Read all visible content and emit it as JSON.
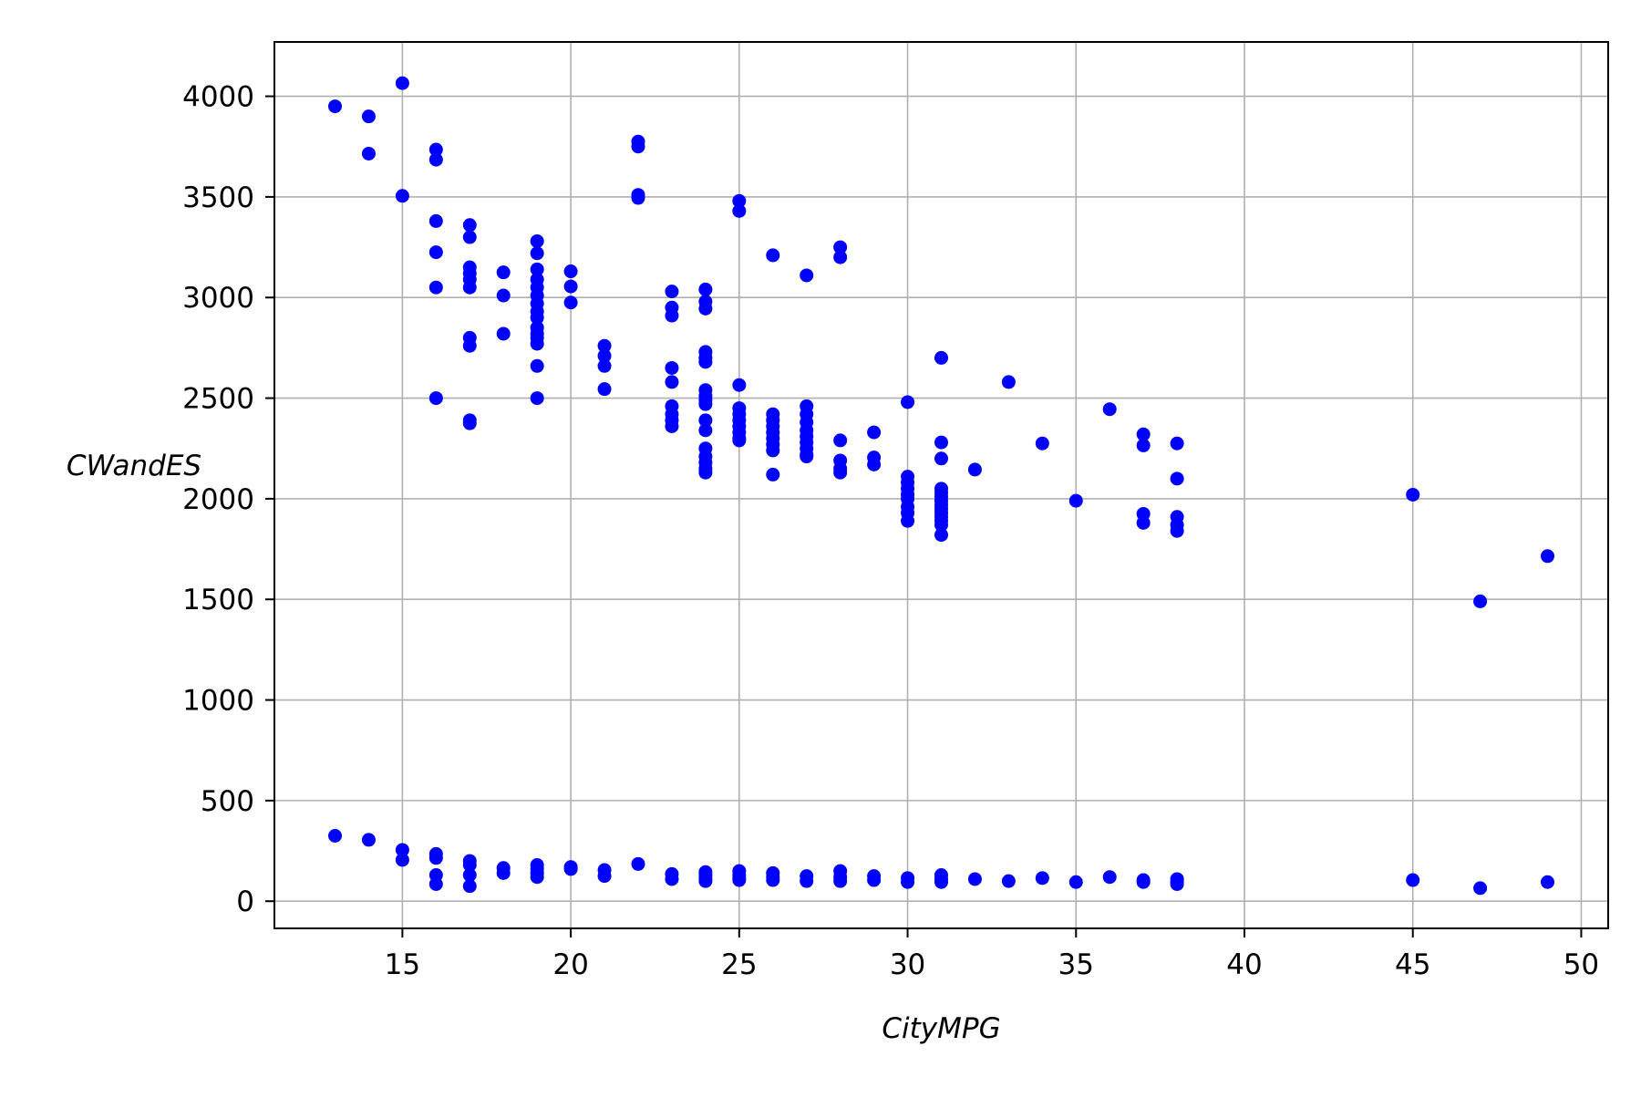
{
  "colors": {
    "marker": "#0000ff",
    "grid": "#b0b0b0",
    "axis": "#000000",
    "background": "#ffffff"
  },
  "chart_data": {
    "type": "scatter",
    "title": "",
    "xlabel": "CityMPG",
    "ylabel": "CWandES",
    "xlim": [
      11.2,
      50.8
    ],
    "ylim": [
      -135,
      4270
    ],
    "x_ticks": [
      15,
      20,
      25,
      30,
      35,
      40,
      45,
      50
    ],
    "y_ticks": [
      0,
      500,
      1000,
      1500,
      2000,
      2500,
      3000,
      3500,
      4000
    ],
    "grid": true,
    "legend": "none",
    "series": [
      {
        "color": "#0000ff",
        "points": [
          [
            13,
            3950
          ],
          [
            13,
            325
          ],
          [
            14,
            3900
          ],
          [
            14,
            3715
          ],
          [
            14,
            305
          ],
          [
            15,
            4065
          ],
          [
            15,
            3505
          ],
          [
            15,
            255
          ],
          [
            15,
            205
          ],
          [
            16,
            3735
          ],
          [
            16,
            3685
          ],
          [
            16,
            3380
          ],
          [
            16,
            3225
          ],
          [
            16,
            3050
          ],
          [
            16,
            2500
          ],
          [
            16,
            235
          ],
          [
            16,
            215
          ],
          [
            16,
            130
          ],
          [
            16,
            85
          ],
          [
            17,
            3360
          ],
          [
            17,
            3300
          ],
          [
            17,
            3150
          ],
          [
            17,
            3120
          ],
          [
            17,
            3090
          ],
          [
            17,
            3050
          ],
          [
            17,
            2800
          ],
          [
            17,
            2760
          ],
          [
            17,
            2390
          ],
          [
            17,
            2375
          ],
          [
            17,
            200
          ],
          [
            17,
            180
          ],
          [
            17,
            130
          ],
          [
            17,
            75
          ],
          [
            18,
            3125
          ],
          [
            18,
            3010
          ],
          [
            18,
            2820
          ],
          [
            18,
            165
          ],
          [
            18,
            140
          ],
          [
            19,
            3280
          ],
          [
            19,
            3220
          ],
          [
            19,
            3140
          ],
          [
            19,
            3090
          ],
          [
            19,
            3050
          ],
          [
            19,
            3010
          ],
          [
            19,
            2970
          ],
          [
            19,
            2930
          ],
          [
            19,
            2900
          ],
          [
            19,
            2850
          ],
          [
            19,
            2820
          ],
          [
            19,
            2800
          ],
          [
            19,
            2770
          ],
          [
            19,
            2660
          ],
          [
            19,
            2500
          ],
          [
            19,
            180
          ],
          [
            19,
            160
          ],
          [
            19,
            140
          ],
          [
            19,
            120
          ],
          [
            20,
            3130
          ],
          [
            20,
            3055
          ],
          [
            20,
            2975
          ],
          [
            20,
            170
          ],
          [
            20,
            160
          ],
          [
            21,
            2760
          ],
          [
            21,
            2710
          ],
          [
            21,
            2660
          ],
          [
            21,
            2545
          ],
          [
            21,
            155
          ],
          [
            21,
            125
          ],
          [
            22,
            3775
          ],
          [
            22,
            3750
          ],
          [
            22,
            3510
          ],
          [
            22,
            3495
          ],
          [
            22,
            185
          ],
          [
            23,
            3030
          ],
          [
            23,
            2950
          ],
          [
            23,
            2910
          ],
          [
            23,
            2650
          ],
          [
            23,
            2580
          ],
          [
            23,
            2460
          ],
          [
            23,
            2420
          ],
          [
            23,
            2390
          ],
          [
            23,
            2360
          ],
          [
            23,
            135
          ],
          [
            23,
            110
          ],
          [
            24,
            3040
          ],
          [
            24,
            2980
          ],
          [
            24,
            2945
          ],
          [
            24,
            2730
          ],
          [
            24,
            2700
          ],
          [
            24,
            2680
          ],
          [
            24,
            2540
          ],
          [
            24,
            2510
          ],
          [
            24,
            2490
          ],
          [
            24,
            2470
          ],
          [
            24,
            2390
          ],
          [
            24,
            2340
          ],
          [
            24,
            2250
          ],
          [
            24,
            2210
          ],
          [
            24,
            2180
          ],
          [
            24,
            2150
          ],
          [
            24,
            2130
          ],
          [
            24,
            145
          ],
          [
            24,
            130
          ],
          [
            24,
            110
          ],
          [
            24,
            100
          ],
          [
            25,
            3480
          ],
          [
            25,
            3430
          ],
          [
            25,
            2565
          ],
          [
            25,
            2450
          ],
          [
            25,
            2420
          ],
          [
            25,
            2390
          ],
          [
            25,
            2360
          ],
          [
            25,
            2330
          ],
          [
            25,
            2300
          ],
          [
            25,
            2290
          ],
          [
            25,
            150
          ],
          [
            25,
            130
          ],
          [
            25,
            115
          ],
          [
            25,
            105
          ],
          [
            26,
            3210
          ],
          [
            26,
            2420
          ],
          [
            26,
            2390
          ],
          [
            26,
            2360
          ],
          [
            26,
            2330
          ],
          [
            26,
            2300
          ],
          [
            26,
            2270
          ],
          [
            26,
            2240
          ],
          [
            26,
            2120
          ],
          [
            26,
            140
          ],
          [
            26,
            120
          ],
          [
            26,
            105
          ],
          [
            27,
            3110
          ],
          [
            27,
            2460
          ],
          [
            27,
            2420
          ],
          [
            27,
            2380
          ],
          [
            27,
            2340
          ],
          [
            27,
            2310
          ],
          [
            27,
            2280
          ],
          [
            27,
            2250
          ],
          [
            27,
            2220
          ],
          [
            27,
            2210
          ],
          [
            27,
            125
          ],
          [
            27,
            100
          ],
          [
            28,
            3250
          ],
          [
            28,
            3200
          ],
          [
            28,
            2290
          ],
          [
            28,
            2190
          ],
          [
            28,
            2150
          ],
          [
            28,
            2130
          ],
          [
            28,
            150
          ],
          [
            28,
            120
          ],
          [
            28,
            100
          ],
          [
            29,
            2330
          ],
          [
            29,
            2205
          ],
          [
            29,
            2170
          ],
          [
            29,
            125
          ],
          [
            29,
            105
          ],
          [
            30,
            2480
          ],
          [
            30,
            2110
          ],
          [
            30,
            2080
          ],
          [
            30,
            2050
          ],
          [
            30,
            2020
          ],
          [
            30,
            2000
          ],
          [
            30,
            1960
          ],
          [
            30,
            1930
          ],
          [
            30,
            1890
          ],
          [
            30,
            115
          ],
          [
            30,
            95
          ],
          [
            31,
            2700
          ],
          [
            31,
            2280
          ],
          [
            31,
            2200
          ],
          [
            31,
            2050
          ],
          [
            31,
            2030
          ],
          [
            31,
            2010
          ],
          [
            31,
            1990
          ],
          [
            31,
            1970
          ],
          [
            31,
            1950
          ],
          [
            31,
            1930
          ],
          [
            31,
            1910
          ],
          [
            31,
            1890
          ],
          [
            31,
            1870
          ],
          [
            31,
            1820
          ],
          [
            31,
            130
          ],
          [
            31,
            110
          ],
          [
            31,
            95
          ],
          [
            32,
            2145
          ],
          [
            32,
            110
          ],
          [
            33,
            2580
          ],
          [
            33,
            100
          ],
          [
            34,
            2275
          ],
          [
            34,
            115
          ],
          [
            35,
            1990
          ],
          [
            35,
            95
          ],
          [
            36,
            2445
          ],
          [
            36,
            120
          ],
          [
            37,
            2320
          ],
          [
            37,
            2265
          ],
          [
            37,
            1925
          ],
          [
            37,
            1880
          ],
          [
            37,
            105
          ],
          [
            37,
            95
          ],
          [
            38,
            2275
          ],
          [
            38,
            2100
          ],
          [
            38,
            1910
          ],
          [
            38,
            1870
          ],
          [
            38,
            1840
          ],
          [
            38,
            110
          ],
          [
            38,
            95
          ],
          [
            38,
            85
          ],
          [
            45,
            2020
          ],
          [
            45,
            105
          ],
          [
            47,
            1490
          ],
          [
            47,
            65
          ],
          [
            49,
            1715
          ],
          [
            49,
            95
          ]
        ]
      }
    ]
  }
}
